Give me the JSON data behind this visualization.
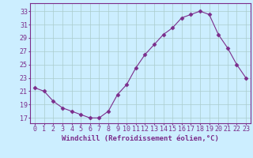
{
  "x": [
    0,
    1,
    2,
    3,
    4,
    5,
    6,
    7,
    8,
    9,
    10,
    11,
    12,
    13,
    14,
    15,
    16,
    17,
    18,
    19,
    20,
    21,
    22,
    23
  ],
  "y": [
    21.5,
    21.0,
    19.5,
    18.5,
    18.0,
    17.5,
    17.0,
    17.0,
    18.0,
    20.5,
    22.0,
    24.5,
    26.5,
    28.0,
    29.5,
    30.5,
    32.0,
    32.5,
    33.0,
    32.5,
    29.5,
    27.5,
    25.0,
    23.0
  ],
  "line_color": "#7b2d8b",
  "marker": "D",
  "marker_size": 2.5,
  "bg_color": "#cceeff",
  "grid_color": "#aacccc",
  "xlabel": "Windchill (Refroidissement éolien,°C)",
  "xlabel_fontsize": 6.5,
  "xtick_labels": [
    "0",
    "1",
    "2",
    "3",
    "4",
    "5",
    "6",
    "7",
    "8",
    "9",
    "10",
    "11",
    "12",
    "13",
    "14",
    "15",
    "16",
    "17",
    "18",
    "19",
    "20",
    "21",
    "22",
    "23"
  ],
  "ytick_values": [
    17,
    19,
    21,
    23,
    25,
    27,
    29,
    31,
    33
  ],
  "ylim": [
    16.2,
    34.2
  ],
  "xlim": [
    -0.5,
    23.5
  ],
  "tick_color": "#7b2d8b",
  "tick_fontsize": 6.0,
  "spine_color": "#7b2d8b"
}
